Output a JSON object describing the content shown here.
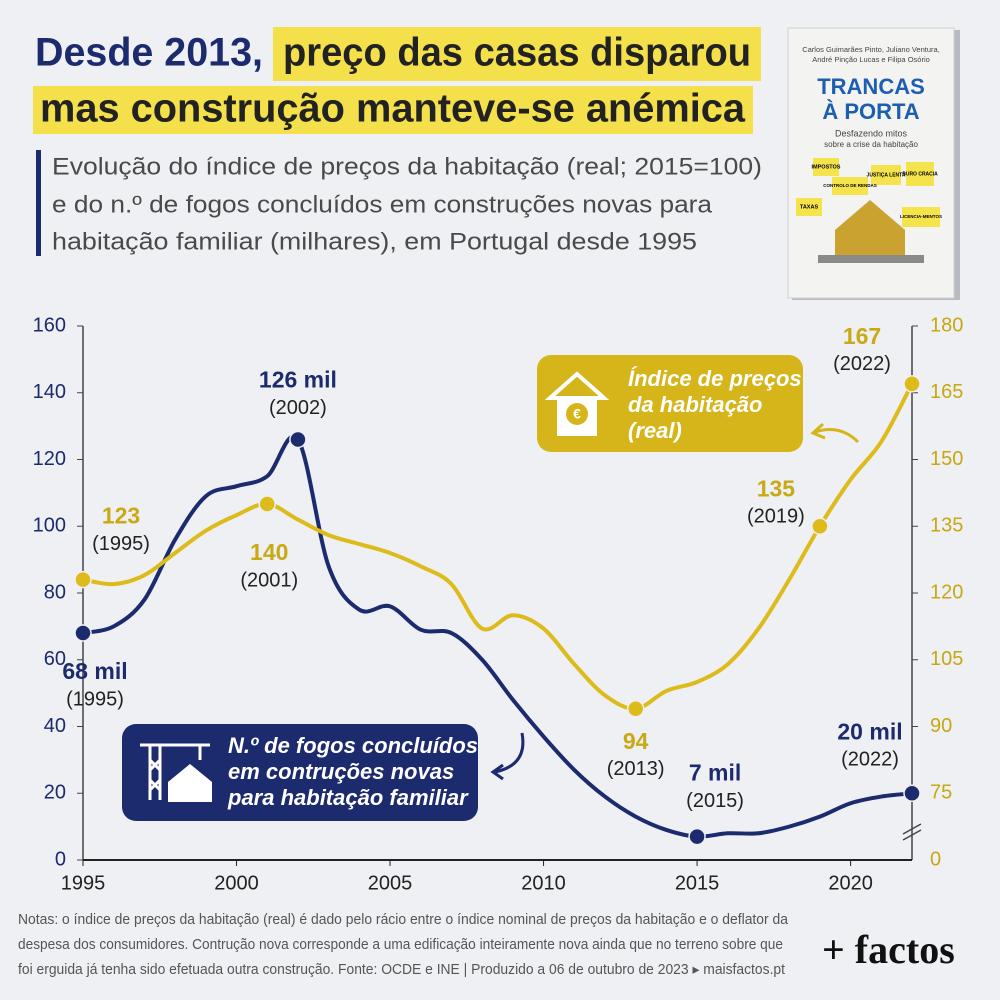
{
  "chart_data": {
    "type": "line",
    "title": {
      "part1": "Desde 2013,",
      "part2": "preço das casas disparou",
      "line2": "mas construção manteve-se anémica"
    },
    "subtitle": [
      "Evolução do índice de preços da habitação (real; 2015=100)",
      "e do n.º de fogos concluídos em construções novas para",
      "habitação familiar (milhares), em Portugal desde 1995"
    ],
    "x": [
      1995,
      1996,
      1997,
      1998,
      1999,
      2000,
      2001,
      2002,
      2003,
      2004,
      2005,
      2006,
      2007,
      2008,
      2009,
      2010,
      2011,
      2012,
      2013,
      2014,
      2015,
      2016,
      2017,
      2018,
      2019,
      2020,
      2021,
      2022
    ],
    "xlim": [
      1995,
      2022
    ],
    "xticks": [
      1995,
      2000,
      2005,
      2010,
      2015,
      2020
    ],
    "ylim": [
      0,
      160
    ],
    "yticks": [
      0,
      20,
      40,
      60,
      80,
      100,
      120,
      140,
      160
    ],
    "y2lim": [
      60,
      180
    ],
    "y2ticks": [
      75,
      90,
      105,
      120,
      135,
      150,
      165,
      180
    ],
    "y2_break_tick_label": "0",
    "series": [
      {
        "name": [
          "N.º de fogos concluídos",
          "em contruções novas",
          "para habitação familiar"
        ],
        "color": "#1c2a6e",
        "values": [
          68,
          70,
          78,
          96,
          109,
          112,
          115,
          126,
          88,
          75,
          76,
          69,
          68,
          60,
          48,
          37,
          27,
          19,
          13,
          9,
          7,
          8,
          8,
          10,
          13,
          17,
          19,
          20
        ],
        "value_labels": [
          "68 mil",
          null,
          null,
          null,
          null,
          null,
          null,
          "126 mil",
          null,
          null,
          null,
          null,
          null,
          null,
          null,
          null,
          null,
          null,
          null,
          null,
          "7 mil",
          null,
          null,
          null,
          null,
          null,
          null,
          "20 mil"
        ],
        "label_years": [
          "(1995)",
          null,
          null,
          null,
          null,
          null,
          null,
          "(2002)",
          null,
          null,
          null,
          null,
          null,
          null,
          null,
          null,
          null,
          null,
          null,
          null,
          "(2015)",
          null,
          null,
          null,
          null,
          null,
          null,
          "(2022)"
        ]
      },
      {
        "name": [
          "Índice de preços",
          "da habitação",
          "(real)"
        ],
        "color": "#dcbb1a",
        "axis": "y2",
        "values": [
          123,
          122,
          124,
          129,
          134,
          137.5,
          140,
          136.5,
          133,
          131,
          129,
          126,
          122,
          112,
          115,
          112,
          104,
          97,
          94,
          98,
          100,
          104,
          112,
          123,
          135,
          145.5,
          154,
          167
        ],
        "value_labels": [
          "123",
          null,
          null,
          null,
          null,
          null,
          "140",
          null,
          null,
          null,
          null,
          null,
          null,
          null,
          null,
          null,
          null,
          null,
          "94",
          null,
          null,
          null,
          null,
          null,
          "135",
          null,
          null,
          "167"
        ],
        "label_years": [
          "(1995)",
          null,
          null,
          null,
          null,
          null,
          "(2001)",
          null,
          null,
          null,
          null,
          null,
          null,
          null,
          null,
          null,
          null,
          null,
          "(2013)",
          null,
          null,
          null,
          null,
          null,
          "(2019)",
          null,
          null,
          "(2022)"
        ]
      }
    ],
    "notes": [
      "Notas: o índice de preços da habitação (real) é dado pelo rácio entre o índice nominal de preços da habitação e o deflator da",
      "despesa dos consumidores. Contrução nova corresponde a uma edificação inteiramente nova ainda que no terreno sobre que",
      "foi erguida já tenha sido efetuada outra construção. Fonte: OCDE e INE | Produzido a 06 de outubro de 2023 ▸ maisfactos.pt"
    ],
    "logo": "+ factos"
  },
  "book": {
    "authors": [
      "Carlos Guimarães Pinto, Juliano Ventura,",
      "André Pinção Lucas e Filipa Osório"
    ],
    "title": [
      "TRANCAS",
      "À PORTA"
    ],
    "subtitle": [
      "Desfazendo mitos",
      "sobre a crise da habitação"
    ],
    "notes": [
      "IMPOSTOS",
      "JUSTIÇA LENTA",
      "BURO CRACIA",
      "CONTROLO DE RENDAS",
      "TAXAS",
      "LICENCIA-MENTOS"
    ]
  }
}
